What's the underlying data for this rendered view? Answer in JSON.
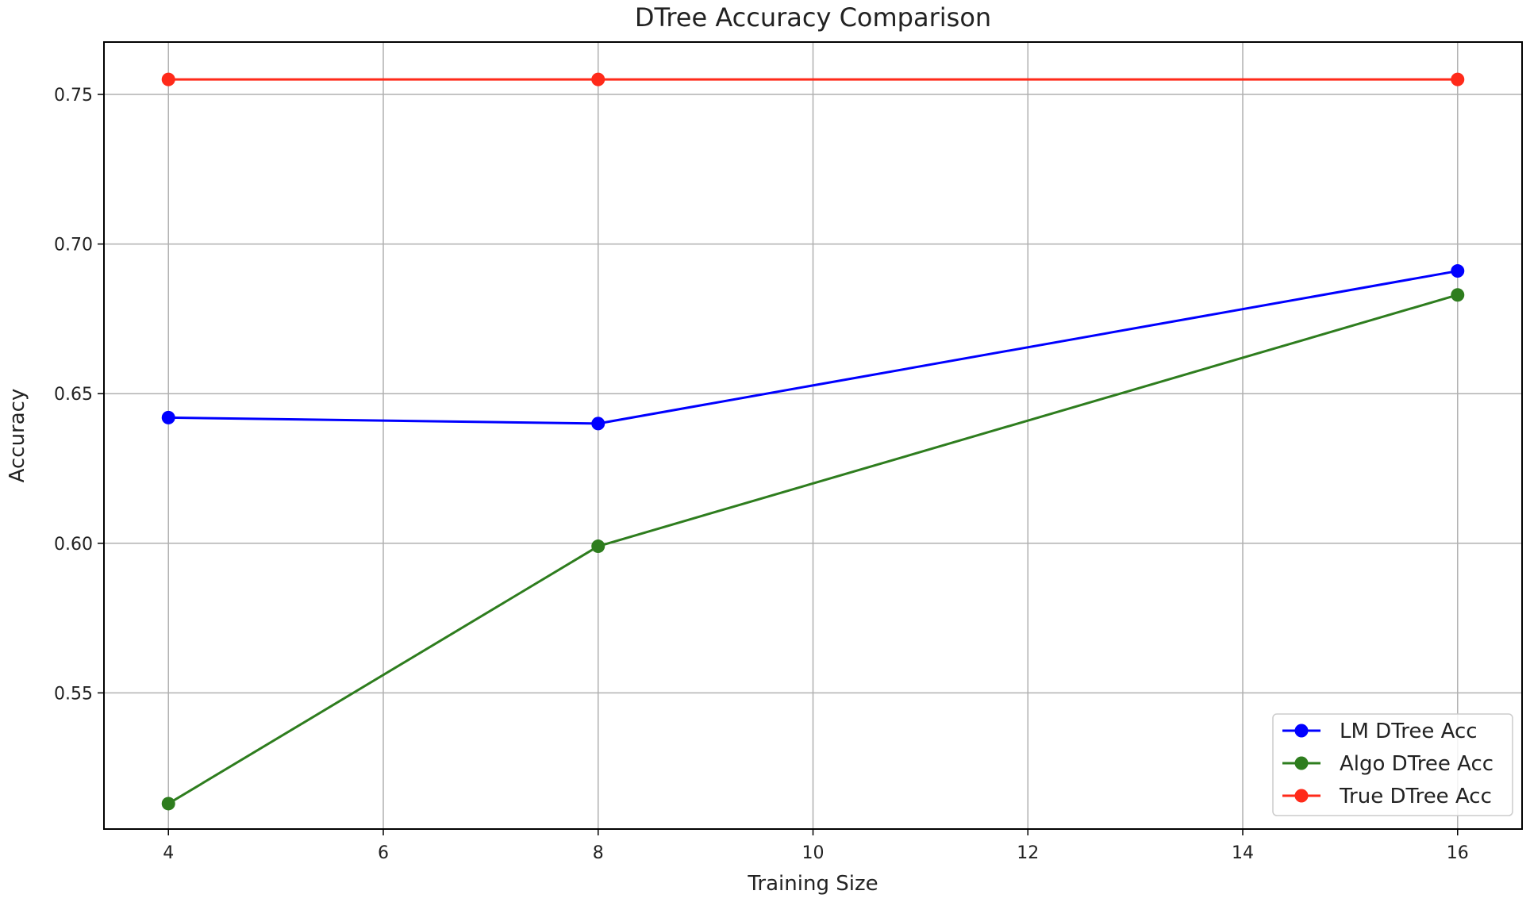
{
  "chart_data": {
    "type": "line",
    "title": "DTree Accuracy Comparison",
    "xlabel": "Training Size",
    "ylabel": "Accuracy",
    "x": [
      4,
      8,
      16
    ],
    "xlim": [
      3.4,
      16.6
    ],
    "ylim": [
      0.5045,
      0.7675
    ],
    "xticks": [
      4,
      6,
      8,
      10,
      12,
      14,
      16
    ],
    "yticks": [
      0.55,
      0.6,
      0.65,
      0.7,
      0.75
    ],
    "ytick_labels": [
      "0.55",
      "0.60",
      "0.65",
      "0.70",
      "0.75"
    ],
    "grid": true,
    "legend_position": "lower-right",
    "series": [
      {
        "name": "LM DTree Acc",
        "color": "#0000ff",
        "values": [
          0.642,
          0.64,
          0.691
        ]
      },
      {
        "name": "Algo DTree Acc",
        "color": "#2e7d1e",
        "values": [
          0.513,
          0.599,
          0.683
        ]
      },
      {
        "name": "True DTree Acc",
        "color": "#ff2a1a",
        "values": [
          0.755,
          0.755,
          0.755
        ]
      }
    ]
  }
}
